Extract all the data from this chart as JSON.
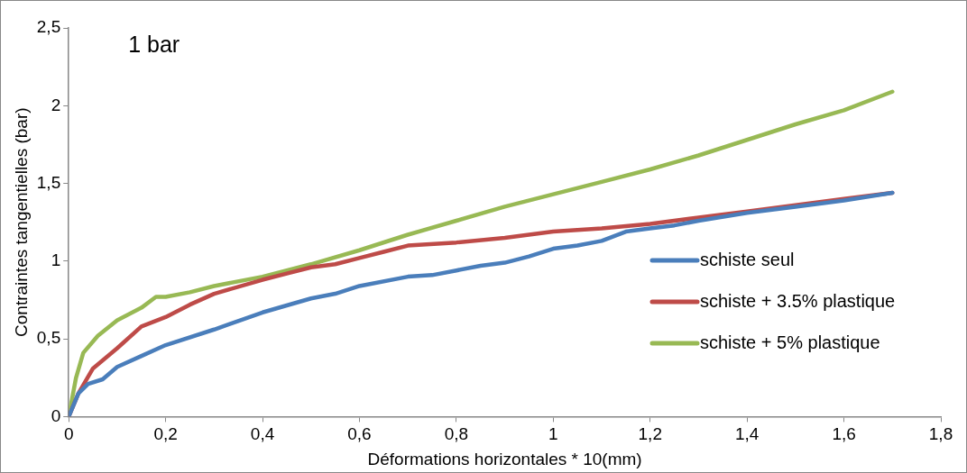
{
  "chart_data": {
    "type": "line",
    "xlabel": "Déformations horizontales * 10(mm)",
    "ylabel": "Contraintes tangentielles (bar)",
    "annotations": [
      "1 bar"
    ],
    "xlim": [
      0,
      1.8
    ],
    "xticks": [
      0,
      {
        "value": 0.2,
        "label": "0,2"
      },
      {
        "value": 0.4,
        "label": "0,4"
      },
      {
        "value": 0.6,
        "label": "0,6"
      },
      {
        "value": 0.8,
        "label": "0,8"
      },
      1,
      {
        "value": 1.2,
        "label": "1,2"
      },
      {
        "value": 1.4,
        "label": "1,4"
      },
      {
        "value": 1.6,
        "label": "1,6"
      },
      {
        "value": 1.8,
        "label": "1,8"
      }
    ],
    "ylim": [
      0,
      2.5
    ],
    "yticks": [
      0,
      {
        "value": 0.5,
        "label": "0,5"
      },
      1,
      {
        "value": 1.5,
        "label": "1,5"
      },
      2,
      {
        "value": 2.5,
        "label": "2,5"
      }
    ],
    "grid": false,
    "legend": "right",
    "marker": "none",
    "line_style": "solid",
    "series": [
      {
        "name": "schiste seul",
        "color": "#4a7ebb",
        "x": [
          0,
          0.02,
          0.04,
          0.07,
          0.1,
          0.15,
          0.2,
          0.3,
          0.4,
          0.5,
          0.55,
          0.6,
          0.7,
          0.75,
          0.8,
          0.85,
          0.9,
          0.95,
          1.0,
          1.05,
          1.1,
          1.15,
          1.2,
          1.25,
          1.3,
          1.4,
          1.5,
          1.6,
          1.7
        ],
        "values": [
          0,
          0.15,
          0.21,
          0.24,
          0.32,
          0.39,
          0.46,
          0.56,
          0.67,
          0.76,
          0.79,
          0.84,
          0.9,
          0.91,
          0.94,
          0.97,
          0.99,
          1.03,
          1.08,
          1.1,
          1.13,
          1.19,
          1.21,
          1.23,
          1.26,
          1.31,
          1.35,
          1.39,
          1.44
        ]
      },
      {
        "name": "schiste + 3.5% plastique",
        "color": "#be4b48",
        "x": [
          0,
          0.02,
          0.05,
          0.1,
          0.15,
          0.2,
          0.25,
          0.3,
          0.4,
          0.45,
          0.5,
          0.55,
          0.6,
          0.65,
          0.7,
          0.8,
          0.9,
          1.0,
          1.1,
          1.2,
          1.3,
          1.4,
          1.5,
          1.6,
          1.7
        ],
        "values": [
          0,
          0.15,
          0.31,
          0.44,
          0.58,
          0.64,
          0.72,
          0.79,
          0.88,
          0.92,
          0.96,
          0.98,
          1.02,
          1.06,
          1.1,
          1.12,
          1.15,
          1.19,
          1.21,
          1.24,
          1.28,
          1.32,
          1.36,
          1.4,
          1.44
        ]
      },
      {
        "name": "schiste + 5% plastique",
        "color": "#98b954",
        "x": [
          0,
          0.015,
          0.03,
          0.06,
          0.1,
          0.15,
          0.18,
          0.2,
          0.25,
          0.3,
          0.4,
          0.5,
          0.6,
          0.7,
          0.8,
          0.9,
          1.0,
          1.1,
          1.2,
          1.3,
          1.4,
          1.5,
          1.6,
          1.7
        ],
        "values": [
          0,
          0.25,
          0.41,
          0.52,
          0.62,
          0.7,
          0.77,
          0.77,
          0.8,
          0.84,
          0.9,
          0.98,
          1.07,
          1.17,
          1.26,
          1.35,
          1.43,
          1.51,
          1.59,
          1.68,
          1.78,
          1.88,
          1.97,
          2.09
        ]
      }
    ]
  }
}
